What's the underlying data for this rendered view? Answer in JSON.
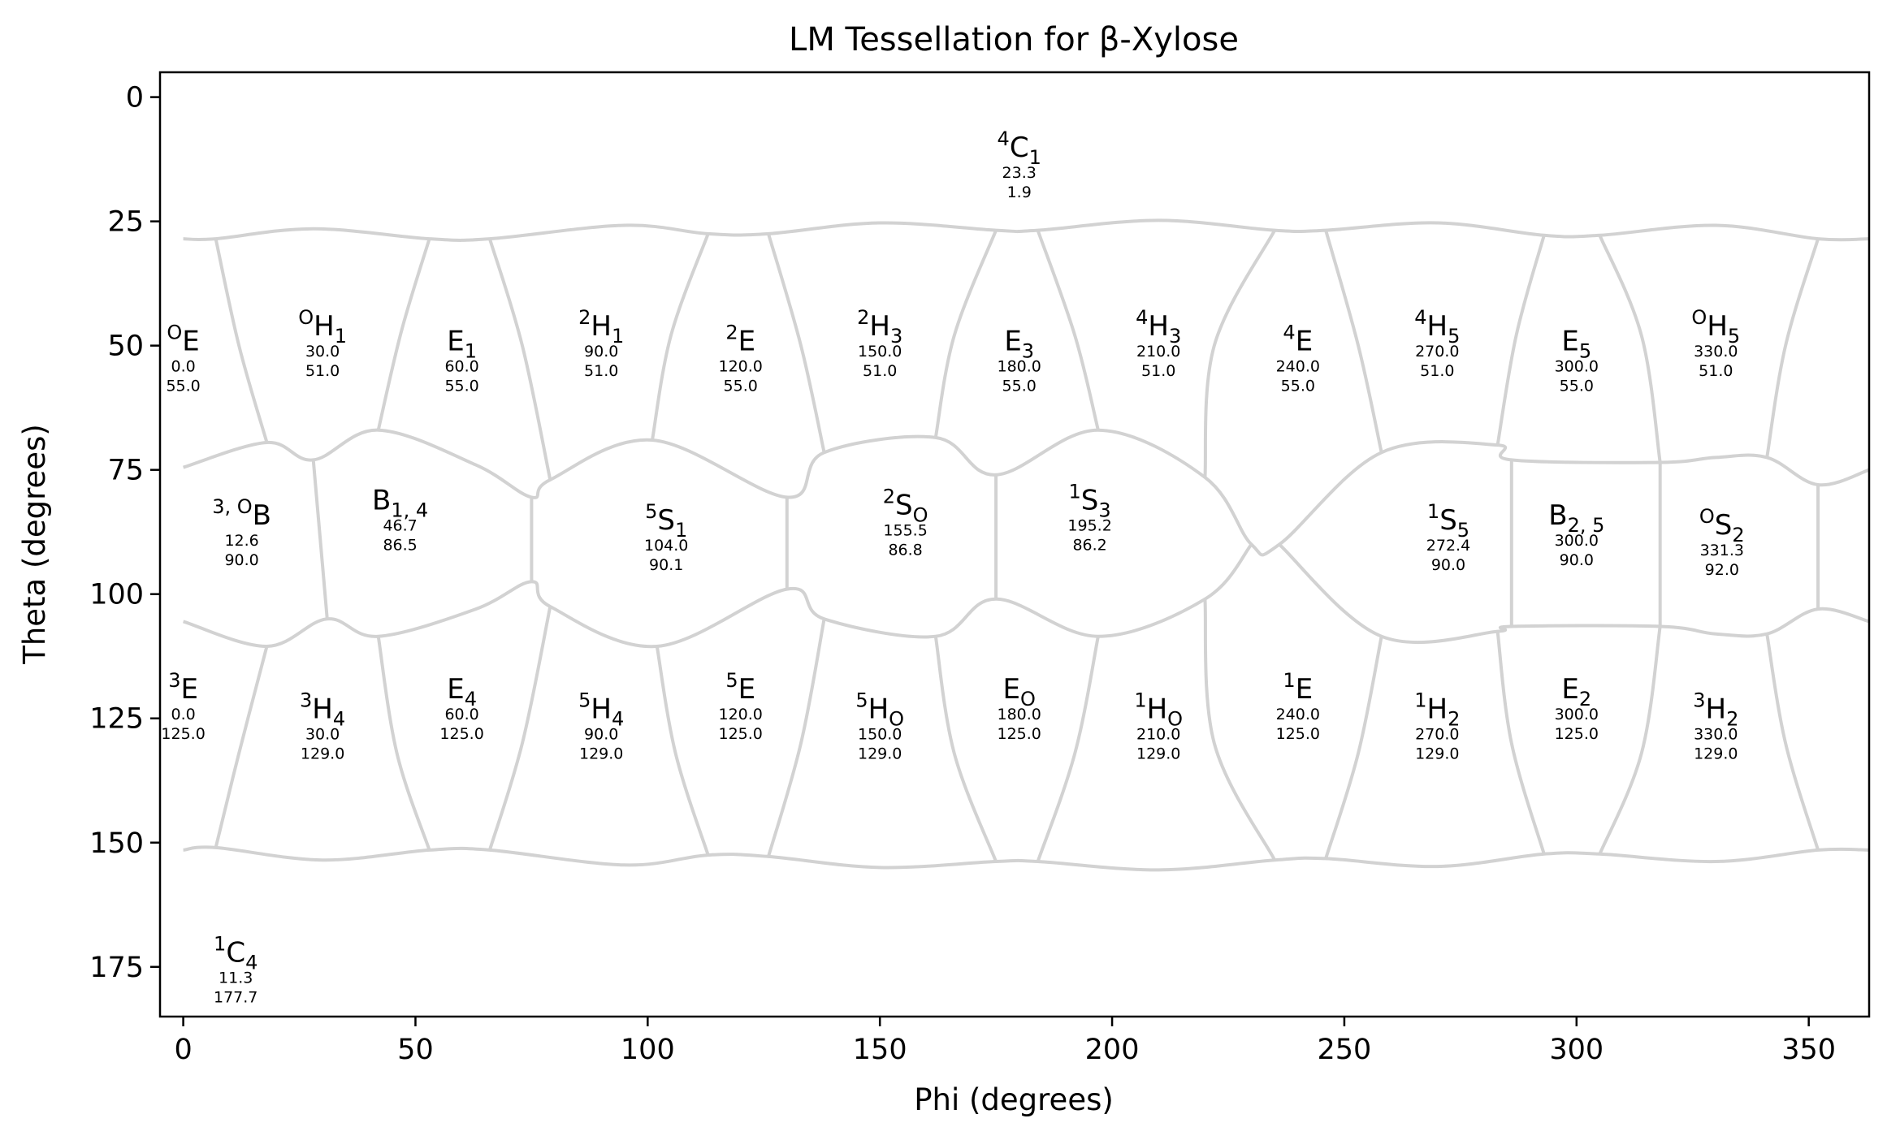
{
  "chart_data": {
    "type": "scatter",
    "title": "LM Tessellation for β-Xylose",
    "xlabel": "Phi (degrees)",
    "ylabel": "Theta (degrees)",
    "xlim": [
      -5,
      363
    ],
    "ylim": [
      185,
      -5
    ],
    "y_axis_inverted": true,
    "xticks": [
      0,
      50,
      100,
      150,
      200,
      250,
      300,
      350
    ],
    "yticks": [
      0,
      25,
      50,
      75,
      100,
      125,
      150,
      175
    ],
    "grid": false,
    "tessellation_color": "#d2d2d2",
    "points": [
      {
        "sup": "4",
        "base": "C",
        "sub": "1",
        "phi": 180.0,
        "theta": 10.0,
        "val1": "23.3",
        "val2": "1.9"
      },
      {
        "sup": "O",
        "base": "E",
        "sub": "",
        "phi": 0.0,
        "theta": 49.0,
        "val1": "0.0",
        "val2": "55.0"
      },
      {
        "sup": "O",
        "base": "H",
        "sub": "1",
        "phi": 30.0,
        "theta": 46.0,
        "val1": "30.0",
        "val2": "51.0"
      },
      {
        "sup": "",
        "base": "E",
        "sub": "1",
        "phi": 60.0,
        "theta": 49.0,
        "val1": "60.0",
        "val2": "55.0"
      },
      {
        "sup": "2",
        "base": "H",
        "sub": "1",
        "phi": 90.0,
        "theta": 46.0,
        "val1": "90.0",
        "val2": "51.0"
      },
      {
        "sup": "2",
        "base": "E",
        "sub": "",
        "phi": 120.0,
        "theta": 49.0,
        "val1": "120.0",
        "val2": "55.0"
      },
      {
        "sup": "2",
        "base": "H",
        "sub": "3",
        "phi": 150.0,
        "theta": 46.0,
        "val1": "150.0",
        "val2": "51.0"
      },
      {
        "sup": "",
        "base": "E",
        "sub": "3",
        "phi": 180.0,
        "theta": 49.0,
        "val1": "180.0",
        "val2": "55.0"
      },
      {
        "sup": "4",
        "base": "H",
        "sub": "3",
        "phi": 210.0,
        "theta": 46.0,
        "val1": "210.0",
        "val2": "51.0"
      },
      {
        "sup": "4",
        "base": "E",
        "sub": "",
        "phi": 240.0,
        "theta": 49.0,
        "val1": "240.0",
        "val2": "55.0"
      },
      {
        "sup": "4",
        "base": "H",
        "sub": "5",
        "phi": 270.0,
        "theta": 46.0,
        "val1": "270.0",
        "val2": "51.0"
      },
      {
        "sup": "",
        "base": "E",
        "sub": "5",
        "phi": 300.0,
        "theta": 49.0,
        "val1": "300.0",
        "val2": "55.0"
      },
      {
        "sup": "O",
        "base": "H",
        "sub": "5",
        "phi": 330.0,
        "theta": 46.0,
        "val1": "330.0",
        "val2": "51.0"
      },
      {
        "sup": "3, O",
        "base": "B",
        "sub": "",
        "phi": 12.6,
        "theta": 84.0,
        "val1": "12.6",
        "val2": "90.0"
      },
      {
        "sup": "",
        "base": "B",
        "sub": "1, 4",
        "phi": 46.7,
        "theta": 81.0,
        "val1": "46.7",
        "val2": "86.5"
      },
      {
        "sup": "5",
        "base": "S",
        "sub": "1",
        "phi": 104.0,
        "theta": 85.0,
        "val1": "104.0",
        "val2": "90.1"
      },
      {
        "sup": "2",
        "base": "S",
        "sub": "O",
        "phi": 155.5,
        "theta": 82.0,
        "val1": "155.5",
        "val2": "86.8"
      },
      {
        "sup": "1",
        "base": "S",
        "sub": "3",
        "phi": 195.2,
        "theta": 81.0,
        "val1": "195.2",
        "val2": "86.2"
      },
      {
        "sup": "1",
        "base": "S",
        "sub": "5",
        "phi": 272.4,
        "theta": 85.0,
        "val1": "272.4",
        "val2": "90.0"
      },
      {
        "sup": "",
        "base": "B",
        "sub": "2, 5",
        "phi": 300.0,
        "theta": 84.0,
        "val1": "300.0",
        "val2": "90.0"
      },
      {
        "sup": "O",
        "base": "S",
        "sub": "2",
        "phi": 331.3,
        "theta": 86.0,
        "val1": "331.3",
        "val2": "92.0"
      },
      {
        "sup": "3",
        "base": "E",
        "sub": "",
        "phi": 0.0,
        "theta": 119.0,
        "val1": "0.0",
        "val2": "125.0"
      },
      {
        "sup": "3",
        "base": "H",
        "sub": "4",
        "phi": 30.0,
        "theta": 123.0,
        "val1": "30.0",
        "val2": "129.0"
      },
      {
        "sup": "",
        "base": "E",
        "sub": "4",
        "phi": 60.0,
        "theta": 119.0,
        "val1": "60.0",
        "val2": "125.0"
      },
      {
        "sup": "5",
        "base": "H",
        "sub": "4",
        "phi": 90.0,
        "theta": 123.0,
        "val1": "90.0",
        "val2": "129.0"
      },
      {
        "sup": "5",
        "base": "E",
        "sub": "",
        "phi": 120.0,
        "theta": 119.0,
        "val1": "120.0",
        "val2": "125.0"
      },
      {
        "sup": "5",
        "base": "H",
        "sub": "O",
        "phi": 150.0,
        "theta": 123.0,
        "val1": "150.0",
        "val2": "129.0"
      },
      {
        "sup": "",
        "base": "E",
        "sub": "O",
        "phi": 180.0,
        "theta": 119.0,
        "val1": "180.0",
        "val2": "125.0"
      },
      {
        "sup": "1",
        "base": "H",
        "sub": "O",
        "phi": 210.0,
        "theta": 123.0,
        "val1": "210.0",
        "val2": "129.0"
      },
      {
        "sup": "1",
        "base": "E",
        "sub": "",
        "phi": 240.0,
        "theta": 119.0,
        "val1": "240.0",
        "val2": "125.0"
      },
      {
        "sup": "1",
        "base": "H",
        "sub": "2",
        "phi": 270.0,
        "theta": 123.0,
        "val1": "270.0",
        "val2": "129.0"
      },
      {
        "sup": "",
        "base": "E",
        "sub": "2",
        "phi": 300.0,
        "theta": 119.0,
        "val1": "300.0",
        "val2": "125.0"
      },
      {
        "sup": "3",
        "base": "H",
        "sub": "2",
        "phi": 330.0,
        "theta": 123.0,
        "val1": "330.0",
        "val2": "129.0"
      },
      {
        "sup": "1",
        "base": "C",
        "sub": "4",
        "phi": 11.3,
        "theta": 172.0,
        "val1": "11.3",
        "val2": "177.7"
      }
    ],
    "boundaries": [
      [
        [
          0,
          28.5
        ],
        [
          7,
          28.5
        ],
        [
          28,
          26.5
        ],
        [
          53,
          28.5
        ],
        [
          66,
          28.5
        ],
        [
          95,
          25.8
        ],
        [
          113,
          27.5
        ],
        [
          126,
          27.5
        ],
        [
          150,
          25.3
        ],
        [
          175,
          26.8
        ],
        [
          184,
          26.8
        ],
        [
          210,
          24.8
        ],
        [
          235,
          26.8
        ],
        [
          246,
          26.8
        ],
        [
          270,
          25.3
        ],
        [
          293,
          27.8
        ],
        [
          305,
          27.8
        ],
        [
          330,
          25.8
        ],
        [
          352,
          28.5
        ],
        [
          363,
          28.5
        ]
      ],
      [
        [
          0,
          151.5
        ],
        [
          7,
          151
        ],
        [
          30,
          153.5
        ],
        [
          53,
          151.5
        ],
        [
          66,
          151.5
        ],
        [
          95,
          154.5
        ],
        [
          113,
          152.5
        ],
        [
          126,
          152.8
        ],
        [
          150,
          155
        ],
        [
          175,
          153.8
        ],
        [
          184,
          153.8
        ],
        [
          210,
          155.5
        ],
        [
          235,
          153.5
        ],
        [
          246,
          153.2
        ],
        [
          270,
          154.8
        ],
        [
          293,
          152.3
        ],
        [
          305,
          152.3
        ],
        [
          330,
          153.8
        ],
        [
          352,
          151.5
        ],
        [
          363,
          151.5
        ]
      ],
      [
        [
          7,
          28.5
        ],
        [
          12,
          50
        ],
        [
          18,
          69.5
        ]
      ],
      [
        [
          0,
          74.5
        ],
        [
          18,
          69.5
        ],
        [
          28,
          73
        ],
        [
          42,
          67
        ],
        [
          63,
          74
        ],
        [
          75,
          80.5
        ],
        [
          79,
          77
        ],
        [
          101,
          69
        ],
        [
          130,
          80.5
        ],
        [
          138,
          71.5
        ],
        [
          162,
          68.5
        ],
        [
          175,
          76
        ],
        [
          197,
          67
        ],
        [
          220,
          76.5
        ],
        [
          230,
          90
        ],
        [
          236,
          90
        ],
        [
          258,
          71.5
        ],
        [
          283,
          70
        ],
        [
          286,
          73
        ],
        [
          318,
          73.5
        ],
        [
          330,
          72.5
        ],
        [
          341,
          72.5
        ],
        [
          352,
          78
        ],
        [
          363,
          75
        ]
      ],
      [
        [
          0,
          105.5
        ],
        [
          18,
          110.5
        ],
        [
          31,
          105
        ],
        [
          42,
          108.5
        ],
        [
          63,
          103
        ],
        [
          75,
          97.5
        ],
        [
          79,
          102.5
        ],
        [
          102,
          110.5
        ],
        [
          130,
          99
        ],
        [
          138,
          105
        ],
        [
          162,
          108.5
        ],
        [
          175,
          101
        ],
        [
          197,
          108.5
        ],
        [
          220,
          101
        ],
        [
          230,
          90
        ]
      ],
      [
        [
          236,
          90
        ],
        [
          258,
          108.5
        ],
        [
          283,
          107.5
        ],
        [
          286,
          106.5
        ],
        [
          318,
          106.5
        ],
        [
          330,
          108
        ],
        [
          341,
          108
        ],
        [
          352,
          103
        ],
        [
          363,
          105.5
        ]
      ],
      [
        [
          53,
          28.5
        ],
        [
          47,
          47
        ],
        [
          42,
          67
        ]
      ],
      [
        [
          66,
          28.5
        ],
        [
          73,
          50
        ],
        [
          79,
          77
        ]
      ],
      [
        [
          113,
          27.5
        ],
        [
          105,
          48
        ],
        [
          101,
          69
        ]
      ],
      [
        [
          126,
          27.5
        ],
        [
          133,
          50
        ],
        [
          138,
          71.5
        ]
      ],
      [
        [
          175,
          26.8
        ],
        [
          166,
          48
        ],
        [
          162,
          68.5
        ]
      ],
      [
        [
          184,
          26.8
        ],
        [
          192,
          48
        ],
        [
          197,
          67
        ]
      ],
      [
        [
          235,
          26.8
        ],
        [
          222,
          50
        ],
        [
          220,
          76.5
        ]
      ],
      [
        [
          246,
          26.8
        ],
        [
          253,
          50
        ],
        [
          258,
          71.5
        ]
      ],
      [
        [
          293,
          27.8
        ],
        [
          287,
          48
        ],
        [
          283,
          70
        ]
      ],
      [
        [
          305,
          27.8
        ],
        [
          314,
          48
        ],
        [
          318,
          73.5
        ]
      ],
      [
        [
          352,
          28.5
        ],
        [
          345,
          50
        ],
        [
          341,
          72.5
        ]
      ],
      [
        [
          28,
          73
        ],
        [
          31,
          105
        ]
      ],
      [
        [
          75,
          80.5
        ],
        [
          75,
          97.5
        ]
      ],
      [
        [
          130,
          80.5
        ],
        [
          130,
          99
        ]
      ],
      [
        [
          175,
          76
        ],
        [
          175,
          101
        ]
      ],
      [
        [
          286,
          73
        ],
        [
          286,
          106.5
        ]
      ],
      [
        [
          318,
          73.5
        ],
        [
          318,
          106.5
        ]
      ],
      [
        [
          352,
          78
        ],
        [
          352,
          103
        ]
      ],
      [
        [
          18,
          110.5
        ],
        [
          12,
          132
        ],
        [
          7,
          151
        ]
      ],
      [
        [
          42,
          108.5
        ],
        [
          46,
          132
        ],
        [
          53,
          151.5
        ]
      ],
      [
        [
          79,
          102.5
        ],
        [
          73,
          130
        ],
        [
          66,
          151.5
        ]
      ],
      [
        [
          102,
          110.5
        ],
        [
          106,
          132
        ],
        [
          113,
          152.5
        ]
      ],
      [
        [
          138,
          105
        ],
        [
          133,
          130
        ],
        [
          126,
          152.8
        ]
      ],
      [
        [
          162,
          108.5
        ],
        [
          166,
          132
        ],
        [
          175,
          153.8
        ]
      ],
      [
        [
          197,
          108.5
        ],
        [
          192,
          132
        ],
        [
          184,
          153.8
        ]
      ],
      [
        [
          220,
          101
        ],
        [
          222,
          130
        ],
        [
          235,
          153.5
        ]
      ],
      [
        [
          258,
          108.5
        ],
        [
          253,
          132
        ],
        [
          246,
          153.2
        ]
      ],
      [
        [
          283,
          107.5
        ],
        [
          286,
          130
        ],
        [
          293,
          152.3
        ]
      ],
      [
        [
          318,
          106.5
        ],
        [
          314,
          132
        ],
        [
          305,
          152.3
        ]
      ],
      [
        [
          341,
          108
        ],
        [
          345,
          130
        ],
        [
          352,
          151.5
        ]
      ]
    ]
  }
}
